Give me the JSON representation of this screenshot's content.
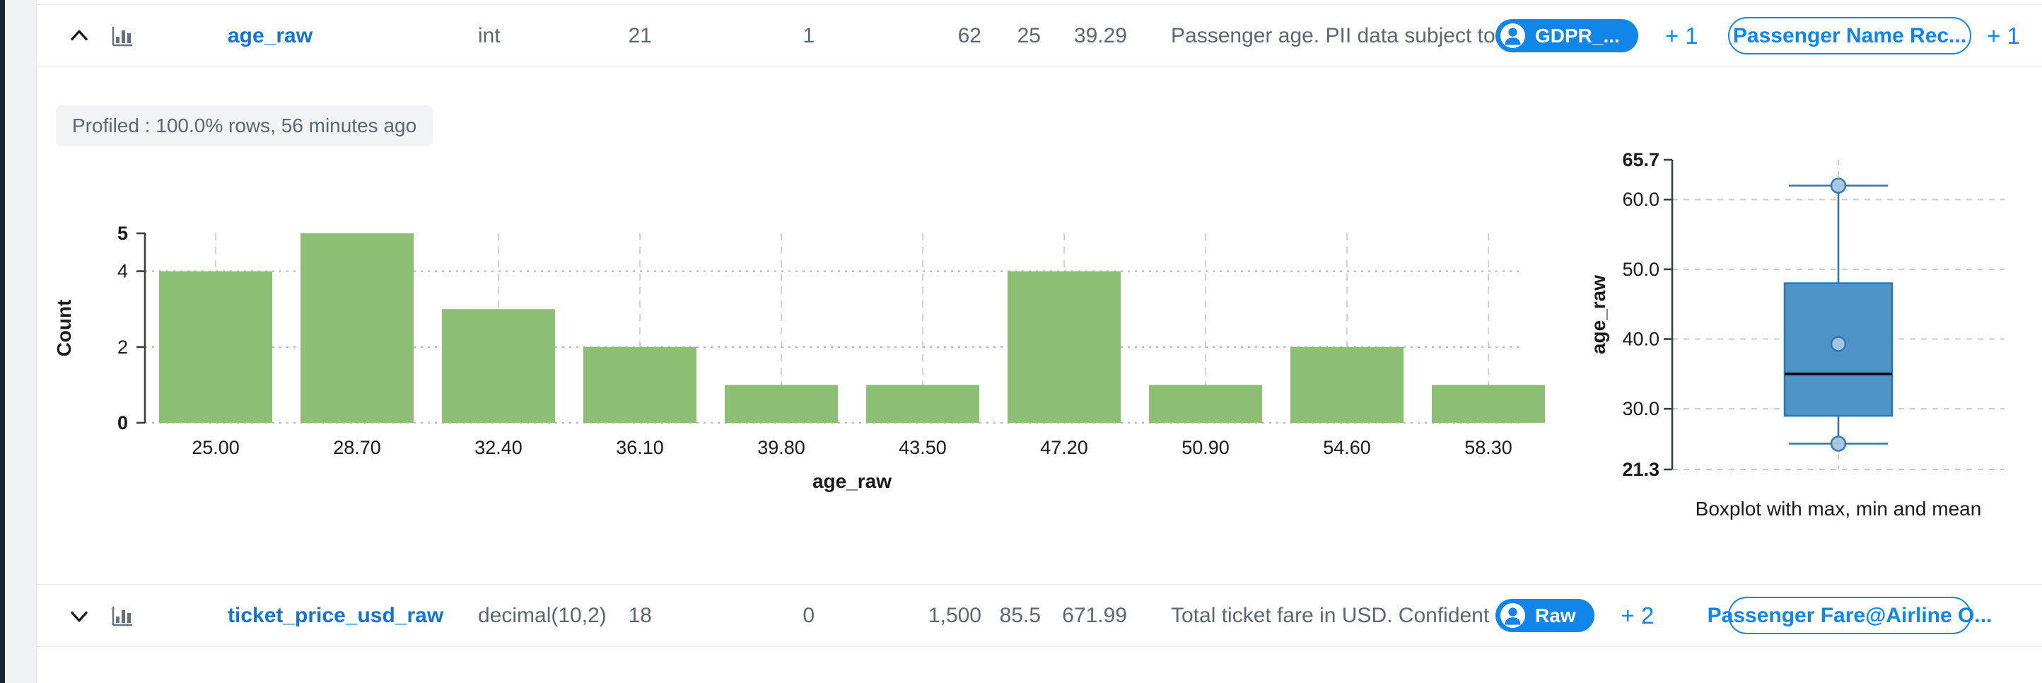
{
  "profile_panel": {
    "status_badge": "Profiled : 100.0% rows, 56 minutes ago"
  },
  "table": {
    "rows": [
      {
        "name": "age_raw",
        "data_type": "int",
        "distinct_count": "21",
        "missing_count": "1",
        "max": "62",
        "min": "25",
        "mean": "39.29",
        "description": "Passenger age. PII data subject to",
        "description_more": "...",
        "tag_label": "GDPR_...",
        "tag_more": "+ 1",
        "term_label": "Passenger Name Rec...",
        "term_more": "+ 1",
        "expanded": true
      },
      {
        "name": "ticket_price_usd_raw",
        "data_type": "decimal(10,2)",
        "distinct_count": "18",
        "missing_count": "0",
        "max": "1,500",
        "min": "85.5",
        "mean": "671.99",
        "description": "Total ticket fare in USD. Confident",
        "description_more": "...",
        "tag_label": "Raw",
        "tag_more": "+ 2",
        "term_label": "Passenger Fare@Airline O...",
        "term_more": "",
        "expanded": false
      }
    ]
  },
  "chart_data": [
    {
      "type": "bar",
      "title": "",
      "categories": [
        "25.00",
        "28.70",
        "32.40",
        "36.10",
        "39.80",
        "43.50",
        "47.20",
        "50.90",
        "54.60",
        "58.30"
      ],
      "values": [
        4,
        5,
        3,
        2,
        1,
        1,
        4,
        1,
        2,
        1
      ],
      "xlabel": "age_raw",
      "ylabel": "Count",
      "ylim": [
        0,
        5
      ],
      "yticks": [
        0,
        2,
        4,
        5
      ],
      "grid": true,
      "legend_position": "none",
      "bar_color": "#8cbe73"
    },
    {
      "type": "boxplot",
      "title": "",
      "xlabel": "Boxplot with max, min and mean",
      "ylabel": "age_raw",
      "ylim": [
        21.3,
        65.7
      ],
      "yticks": [
        "21.3",
        "30.0",
        "40.0",
        "50.0",
        "60.0",
        "65.7"
      ],
      "stats": {
        "min": 25,
        "q1": 29,
        "median": 35,
        "q3": 48,
        "max": 62,
        "mean": 39.29
      },
      "grid": true,
      "box_fill": "#4f94c6",
      "box_stroke": "#2c77b0",
      "median_color": "#000000",
      "marker_fill": "#a9c7e2",
      "marker_stroke": "#2f79b3"
    }
  ],
  "colors": {
    "link_blue": "#1674d1",
    "pill_blue": "#1186e8",
    "bar_green": "#8cbe73",
    "box_fill": "#4f94c6",
    "text_gray": "#5c6770",
    "rail_dark": "#18232f"
  }
}
